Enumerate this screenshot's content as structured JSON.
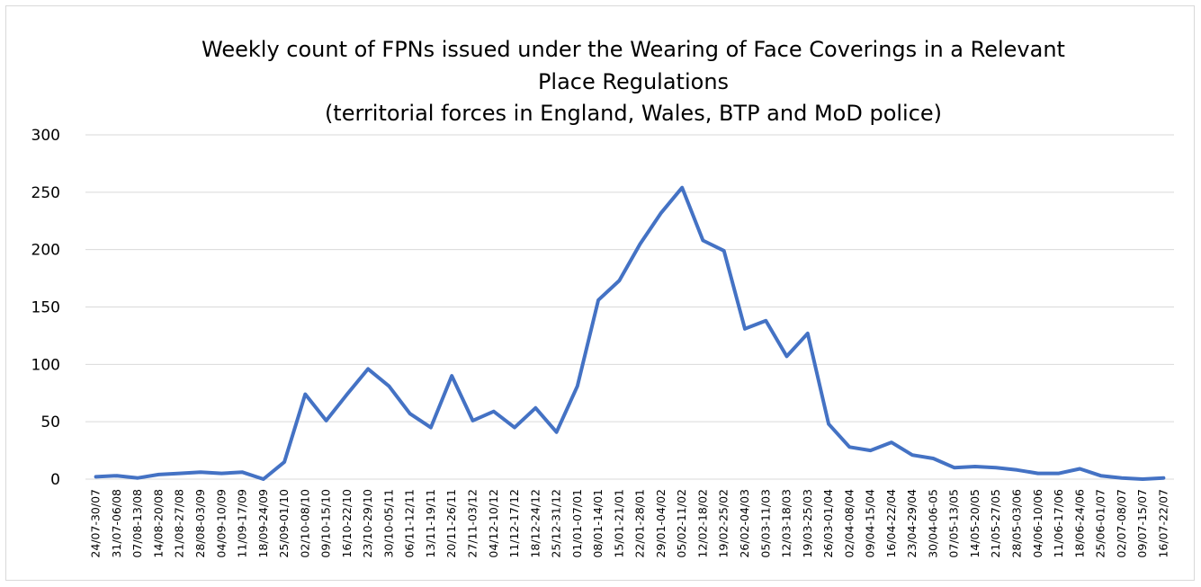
{
  "chart_data": {
    "type": "line",
    "title": [
      "Weekly count of FPNs issued under the Wearing of Face Coverings in a Relevant",
      "Place Regulations",
      "(territorial forces in England, Wales, BTP and MoD police)"
    ],
    "xlabel": "",
    "ylabel": "",
    "ylim": [
      0,
      300
    ],
    "yticks": [
      "0",
      "50",
      "100",
      "150",
      "200",
      "250",
      "300"
    ],
    "grid": true,
    "legend": "none",
    "line_color": "#4472c4",
    "categories": [
      "24/07-30/07",
      "31/07-06/08",
      "07/08-13/08",
      "14/08-20/08",
      "21/08-27/08",
      "28/08-03/09",
      "04/09-10/09",
      "11/09-17/09",
      "18/09-24/09",
      "25/09-01/10",
      "02/10-08/10",
      "09/10-15/10",
      "16/10-22/10",
      "23/10-29/10",
      "30/10-05/11",
      "06/11-12/11",
      "13/11-19/11",
      "20/11-26/11",
      "27/11-03/12",
      "04/12-10/12",
      "11/12-17/12",
      "18/12-24/12",
      "25/12-31/12",
      "01/01-07/01",
      "08/01-14/01",
      "15/01-21/01",
      "22/01-28/01",
      "29/01-04/02",
      "05/02-11/02",
      "12/02-18/02",
      "19/02-25/02",
      "26/02-04/03",
      "05/03-11/03",
      "12/03-18/03",
      "19/03-25/03",
      "26/03-01/04",
      "02/04-08/04",
      "09/04-15/04",
      "16/04-22/04",
      "23/04-29/04",
      "30/04-06-05",
      "07/05-13/05",
      "14/05-20/05",
      "21/05-27/05",
      "28/05-03/06",
      "04/06-10/06",
      "11/06-17/06",
      "18/06-24/06",
      "25/06-01/07",
      "02/07-08/07",
      "09/07-15/07",
      "16/07-22/07"
    ],
    "series": [
      {
        "values": [
          2,
          3,
          1,
          4,
          5,
          6,
          5,
          6,
          0,
          15,
          74,
          51,
          74,
          96,
          81,
          57,
          45,
          90,
          51,
          59,
          45,
          62,
          41,
          81,
          156,
          173,
          205,
          232,
          254,
          208,
          199,
          131,
          138,
          107,
          127,
          48,
          28,
          25,
          32,
          21,
          18,
          10,
          11,
          10,
          8,
          5,
          5,
          9,
          3,
          1,
          0,
          1
        ]
      }
    ]
  }
}
